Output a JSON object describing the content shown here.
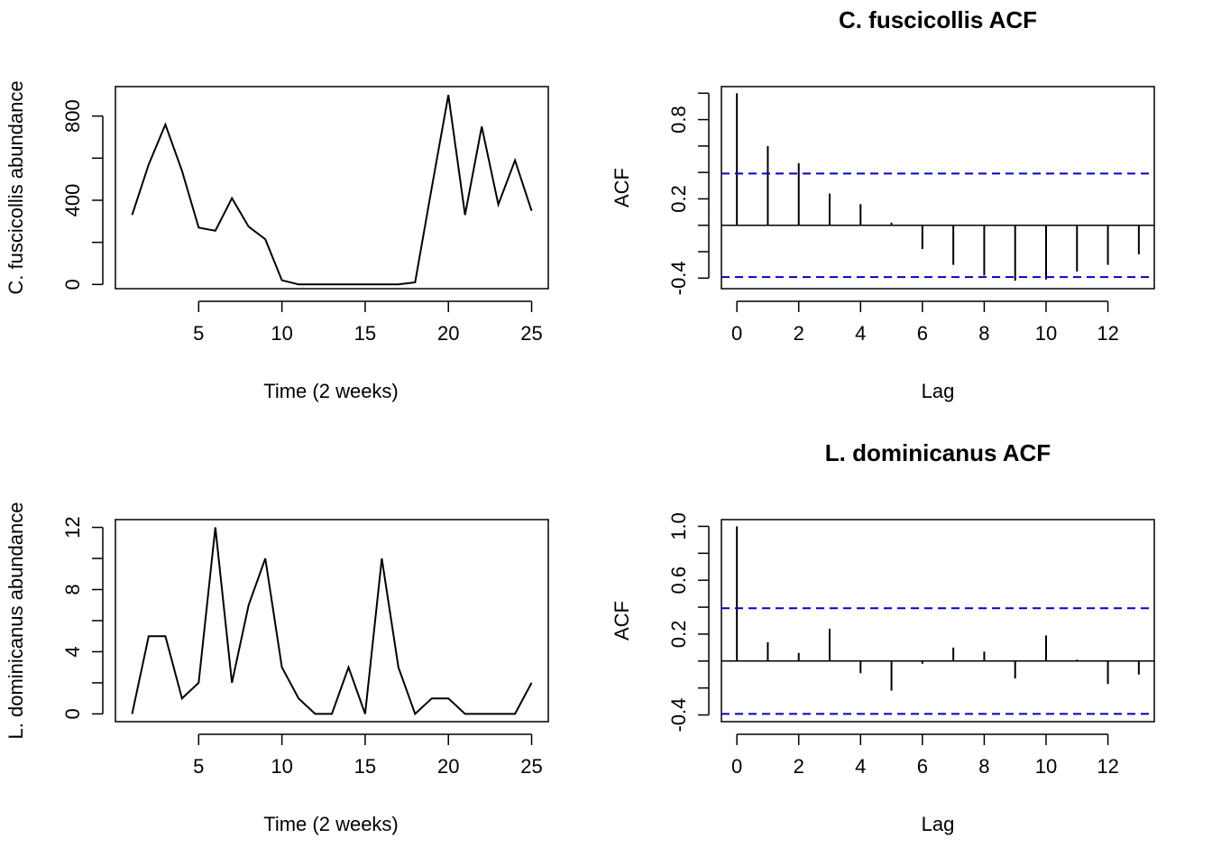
{
  "chart_data": [
    {
      "id": "p1",
      "type": "line",
      "title": "",
      "xlabel": "Time (2 weeks)",
      "ylabel": "C. fuscicollis abundance",
      "xlim": [
        0,
        26
      ],
      "ylim": [
        -20,
        940
      ],
      "xticks": [
        5,
        10,
        15,
        20,
        25
      ],
      "yticks": [
        0,
        200,
        400,
        600,
        800
      ],
      "ytick_labels": [
        "0",
        "",
        "400",
        "",
        "800"
      ],
      "x": [
        1,
        2,
        3,
        4,
        5,
        6,
        7,
        8,
        9,
        10,
        11,
        12,
        13,
        14,
        15,
        16,
        17,
        18,
        19,
        20,
        21,
        22,
        23,
        24,
        25
      ],
      "y": [
        330,
        570,
        760,
        540,
        270,
        255,
        410,
        275,
        215,
        20,
        0,
        0,
        0,
        0,
        0,
        0,
        0,
        10,
        460,
        900,
        330,
        750,
        380,
        590,
        350
      ]
    },
    {
      "id": "p2",
      "type": "bar",
      "title": "C. fuscicollis ACF",
      "xlabel": "Lag",
      "ylabel": "ACF",
      "xlim": [
        -0.5,
        13.5
      ],
      "ylim": [
        -0.48,
        1.05
      ],
      "xticks": [
        0,
        2,
        4,
        6,
        8,
        10,
        12
      ],
      "yticks": [
        -0.4,
        -0.2,
        0,
        0.2,
        0.4,
        0.6,
        0.8,
        1.0
      ],
      "ytick_labels": [
        "-0.4",
        "",
        "",
        "0.2",
        "",
        "",
        "0.8",
        ""
      ],
      "lags": [
        0,
        1,
        2,
        3,
        4,
        5,
        6,
        7,
        8,
        9,
        10,
        11,
        12,
        13
      ],
      "values": [
        1.0,
        0.6,
        0.47,
        0.24,
        0.16,
        0.02,
        -0.18,
        -0.3,
        -0.38,
        -0.42,
        -0.41,
        -0.35,
        -0.3,
        -0.22
      ],
      "ci": 0.392
    },
    {
      "id": "p3",
      "type": "line",
      "title": "",
      "xlabel": "Time (2 weeks)",
      "ylabel": "L. dominicanus abundance",
      "xlim": [
        0,
        26
      ],
      "ylim": [
        -0.5,
        12.5
      ],
      "xticks": [
        5,
        10,
        15,
        20,
        25
      ],
      "yticks": [
        0,
        2,
        4,
        6,
        8,
        10,
        12
      ],
      "ytick_labels": [
        "0",
        "",
        "4",
        "",
        "8",
        "",
        "12"
      ],
      "x": [
        1,
        2,
        3,
        4,
        5,
        6,
        7,
        8,
        9,
        10,
        11,
        12,
        13,
        14,
        15,
        16,
        17,
        18,
        19,
        20,
        21,
        22,
        23,
        24,
        25
      ],
      "y": [
        0,
        5,
        5,
        1,
        2,
        12,
        2,
        7,
        10,
        3,
        1,
        0,
        0,
        3,
        0,
        10,
        3,
        0,
        1,
        1,
        0,
        0,
        0,
        0,
        2
      ]
    },
    {
      "id": "p4",
      "type": "bar",
      "title": "L. dominicanus ACF",
      "xlabel": "Lag",
      "ylabel": "ACF",
      "xlim": [
        -0.5,
        13.5
      ],
      "ylim": [
        -0.45,
        1.05
      ],
      "xticks": [
        0,
        2,
        4,
        6,
        8,
        10,
        12
      ],
      "yticks": [
        -0.4,
        -0.2,
        0,
        0.2,
        0.4,
        0.6,
        0.8,
        1.0
      ],
      "ytick_labels": [
        "-0.4",
        "",
        "",
        "0.2",
        "",
        "0.6",
        "",
        "1.0"
      ],
      "lags": [
        0,
        1,
        2,
        3,
        4,
        5,
        6,
        7,
        8,
        9,
        10,
        11,
        12,
        13
      ],
      "values": [
        1.0,
        0.14,
        0.06,
        0.24,
        -0.09,
        -0.22,
        -0.02,
        0.1,
        0.07,
        -0.13,
        0.19,
        0.01,
        -0.17,
        -0.1
      ],
      "ci": 0.392
    }
  ]
}
